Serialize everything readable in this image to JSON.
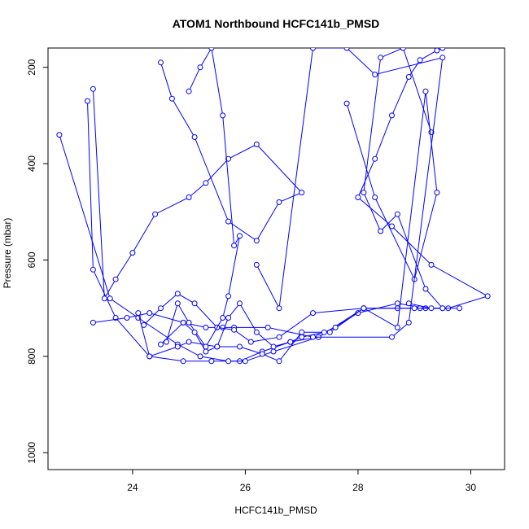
{
  "chart_data": {
    "type": "line",
    "title": "ATOM1 Northbound HCFC141b_PMSD",
    "xlabel": "HCFC141b_PMSD",
    "ylabel": "Pressure (mbar)",
    "xlim": [
      22.5,
      30.6
    ],
    "ylim": [
      1035,
      160
    ],
    "y_reversed": true,
    "x_ticks": [
      24,
      26,
      28,
      30
    ],
    "y_ticks": [
      200,
      400,
      600,
      800,
      1000
    ],
    "grid": false,
    "legend": "none",
    "color": "#0000ff",
    "marker": "open-circle",
    "series": [
      {
        "x": [
          23.2,
          23.3,
          23.7,
          24.3,
          24.9,
          25.4,
          25.9,
          26.3,
          26.8,
          27.3,
          28.0,
          28.7,
          29.2,
          29.6,
          30.3,
          29.3,
          28.6,
          28.0,
          28.3,
          28.6,
          28.9,
          29.1,
          29.4,
          29.5
        ],
        "y": [
          270,
          620,
          720,
          800,
          810,
          810,
          810,
          790,
          770,
          760,
          710,
          690,
          700,
          700,
          675,
          610,
          530,
          470,
          390,
          300,
          220,
          185,
          165,
          160
        ]
      },
      {
        "x": [
          22.7,
          23.6,
          24.1,
          24.8,
          25.2,
          25.7,
          26.0,
          26.5,
          27.3,
          28.1,
          28.7,
          29.1,
          29.5,
          29.2,
          28.7,
          28.4,
          28.1,
          28.4,
          28.8,
          29.3
        ],
        "y": [
          340,
          680,
          720,
          775,
          800,
          810,
          810,
          790,
          760,
          700,
          700,
          700,
          700,
          660,
          505,
          540,
          460,
          180,
          160,
          335
        ]
      },
      {
        "x": [
          23.3,
          23.5,
          23.7,
          24.0,
          24.4,
          25.0,
          25.3,
          25.7,
          26.2,
          27.0,
          26.6,
          26.2,
          25.7,
          25.1,
          24.7,
          24.5
        ],
        "y": [
          245,
          680,
          640,
          585,
          505,
          470,
          440,
          390,
          360,
          460,
          480,
          560,
          520,
          345,
          265,
          190
        ]
      },
      {
        "x": [
          24.1,
          24.3,
          24.8,
          25.0,
          25.5,
          25.9,
          26.3,
          26.6,
          27.0,
          27.5,
          28.1,
          28.7,
          29.2,
          29.4,
          29.0,
          28.3,
          27.8
        ],
        "y": [
          710,
          800,
          780,
          770,
          780,
          780,
          795,
          810,
          750,
          750,
          700,
          740,
          250,
          460,
          640,
          470,
          275
        ]
      },
      {
        "x": [
          23.3,
          23.9,
          24.3,
          24.9,
          25.3,
          25.6,
          25.8,
          26.4,
          27.2,
          28.6,
          28.9,
          29.5,
          28.3,
          27.8,
          27.2,
          26.6,
          26.2
        ],
        "y": [
          730,
          720,
          710,
          730,
          740,
          740,
          740,
          740,
          760,
          760,
          730,
          180,
          215,
          160,
          160,
          700,
          610
        ]
      },
      {
        "x": [
          24.2,
          24.5,
          24.8,
          25.1,
          25.5,
          25.8,
          26.1,
          26.6,
          27.2,
          28.1,
          29.0,
          29.8,
          29.5,
          29.3,
          28.9
        ],
        "y": [
          735,
          700,
          670,
          690,
          740,
          745,
          770,
          760,
          710,
          700,
          700,
          700,
          700,
          700,
          690
        ]
      },
      {
        "x": [
          24.6,
          24.8,
          25.0,
          25.3,
          25.6,
          25.7,
          25.9,
          25.8,
          25.6,
          25.4,
          25.2,
          25.0
        ],
        "y": [
          770,
          690,
          730,
          780,
          720,
          675,
          550,
          570,
          300,
          160,
          200,
          250
        ]
      },
      {
        "x": [
          24.5,
          24.9,
          25.1,
          25.3,
          25.5,
          25.7,
          25.9,
          26.2,
          26.5,
          26.8,
          27.0,
          27.4,
          27.6
        ],
        "y": [
          775,
          730,
          750,
          790,
          780,
          720,
          690,
          750,
          780,
          770,
          760,
          750,
          740
        ]
      }
    ]
  }
}
